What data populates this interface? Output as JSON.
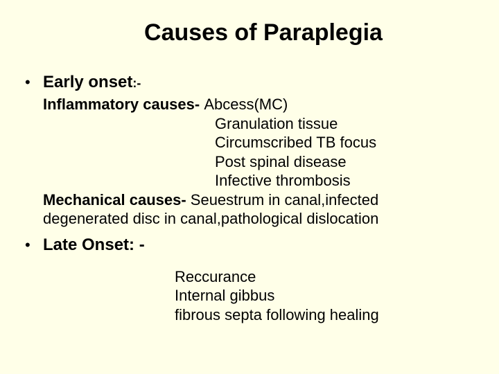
{
  "colors": {
    "background": "#ffffe8",
    "text": "#000000"
  },
  "typography": {
    "title_fontsize": 34,
    "heading_fontsize": 24,
    "body_fontsize": 22,
    "font_family": "Arial"
  },
  "title": "Causes of Paraplegia",
  "early": {
    "heading": "Early onset",
    "colon": ":-",
    "inflammatory_label": "Inflammatory causes- ",
    "inflammatory_first": "Abcess(MC)",
    "inflammatory_items": {
      "i1": "Granulation tissue",
      "i2": "Circumscribed TB focus",
      "i3": "Post spinal disease",
      "i4": "Infective thrombosis"
    },
    "mechanical_label": "Mechanical causes- ",
    "mechanical_text_l1": "Seuestrum in canal,infected",
    "mechanical_text_l2": "degenerated disc in canal,pathological dislocation"
  },
  "late": {
    "heading": "Late Onset: -",
    "items": {
      "i1": "Reccurance",
      "i2": "Internal gibbus",
      "i3": "fibrous septa following healing"
    }
  }
}
